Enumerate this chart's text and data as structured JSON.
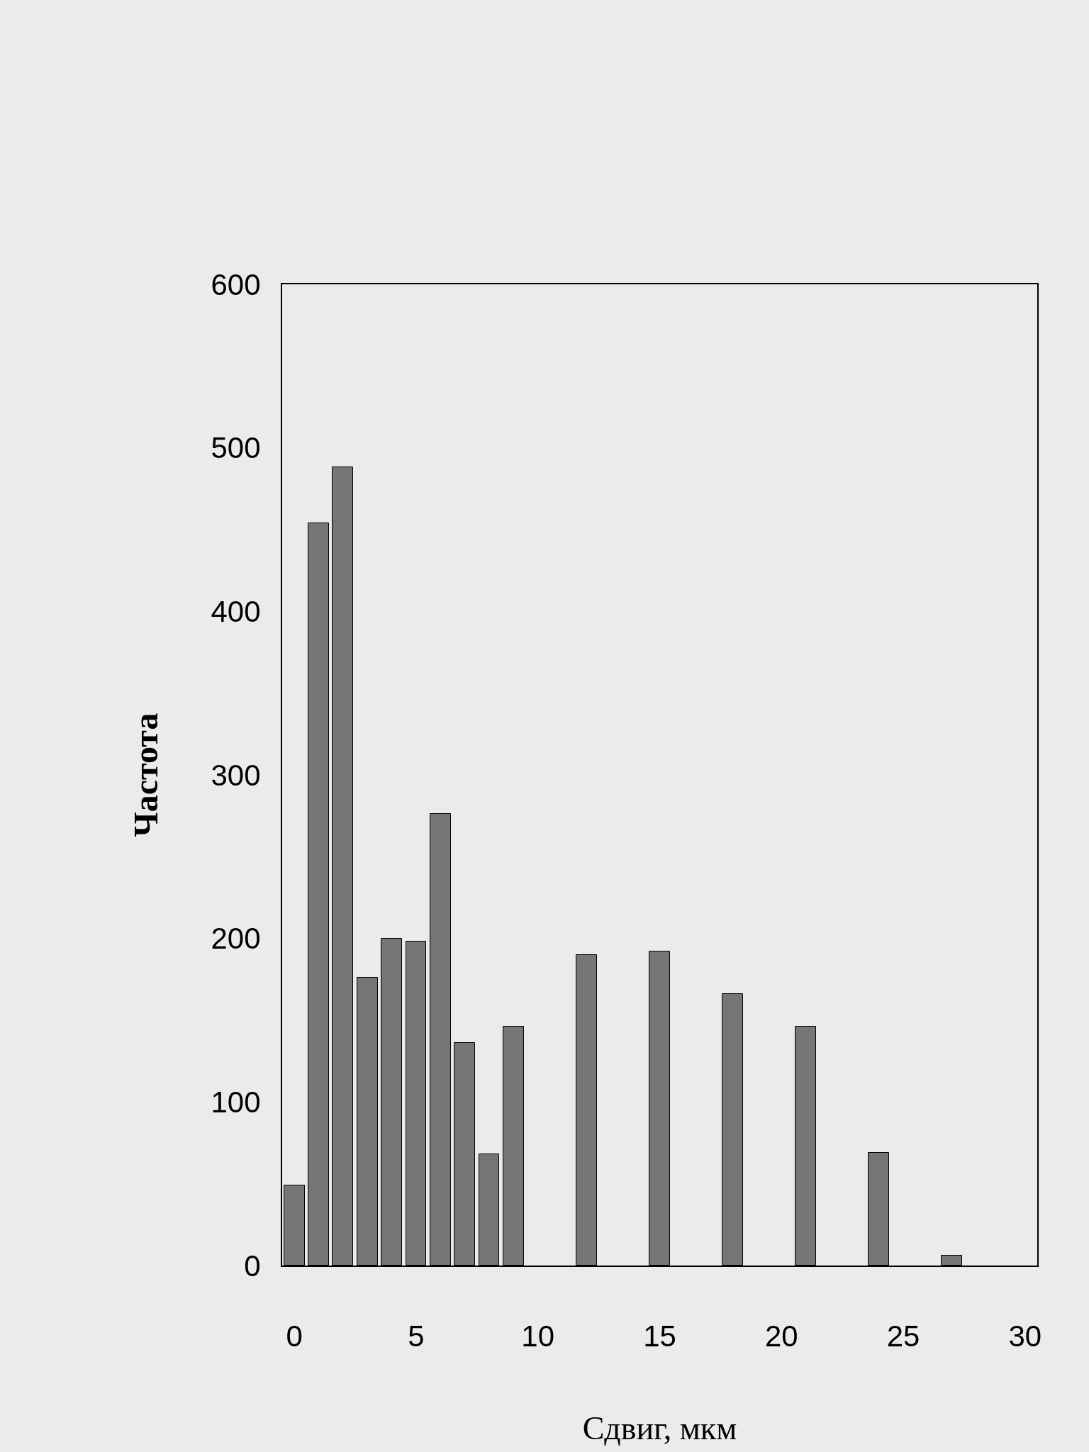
{
  "chart_data": {
    "type": "bar",
    "xlabel": "Сдвиг, мкм",
    "ylabel": "Частота",
    "x": [
      0,
      1,
      2,
      3,
      4,
      5,
      6,
      7,
      8,
      9,
      12,
      15,
      18,
      21,
      24,
      27
    ],
    "values": [
      49,
      454,
      488,
      176,
      200,
      198,
      276,
      136,
      68,
      146,
      190,
      192,
      166,
      146,
      69,
      6
    ],
    "color": "#767676",
    "xlim": [
      -0.5,
      30.5
    ],
    "xticks": [
      0,
      5,
      10,
      15,
      20,
      25,
      30
    ],
    "ylim": [
      0,
      600
    ],
    "yticks": [
      0,
      100,
      200,
      300,
      400,
      500,
      600
    ],
    "grid": false
  }
}
